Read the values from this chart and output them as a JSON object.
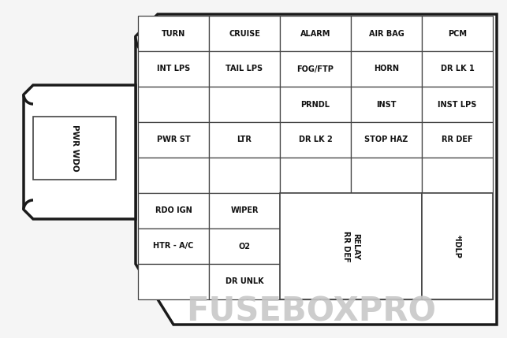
{
  "background_color": "#f5f5f5",
  "border_color": "#1a1a1a",
  "grid_color": "#444444",
  "text_color": "#111111",
  "watermark_color": "#c8c8c8",
  "figsize": [
    6.43,
    4.29
  ],
  "dpi": 100,
  "cells": {
    "r7c0": "TURN",
    "r7c1": "CRUISE",
    "r7c2": "ALARM",
    "r7c3": "AIR BAG",
    "r7c4": "PCM",
    "r6c0": "INT LPS",
    "r6c1": "TAIL LPS",
    "r6c2": "FOG/FTP",
    "r6c3": "HORN",
    "r6c4": "DR LK 1",
    "r5c0": "",
    "r5c1": "",
    "r5c2": "PRNDL",
    "r5c3": "INST",
    "r5c4": "INST LPS",
    "r4c0": "PWR ST",
    "r4c1": "LTR",
    "r4c2": "DR LK 2",
    "r4c3": "STOP HAZ",
    "r4c4": "RR DEF",
    "r3c0": "",
    "r3c1": "",
    "r3c2": "",
    "r3c3": "",
    "r3c4": "",
    "r2c0": "RDO IGN",
    "r2c1": "WIPER",
    "r2c2": "",
    "r2c3": "",
    "r2c4": "",
    "r1c0": "HTR - A/C",
    "r1c1": "O2",
    "r1c2": "",
    "r1c3": "",
    "r1c4": "",
    "r0c0": "",
    "r0c1": "DR UNLK",
    "r0c2": "",
    "r0c3": "",
    "r0c4": ""
  },
  "relay_label": "RELAY\nRR DEF",
  "idlp_label": "*IDLP",
  "pwr_wdo_label": "PWR WDO",
  "watermark_text": "FUSEBOXPRO"
}
